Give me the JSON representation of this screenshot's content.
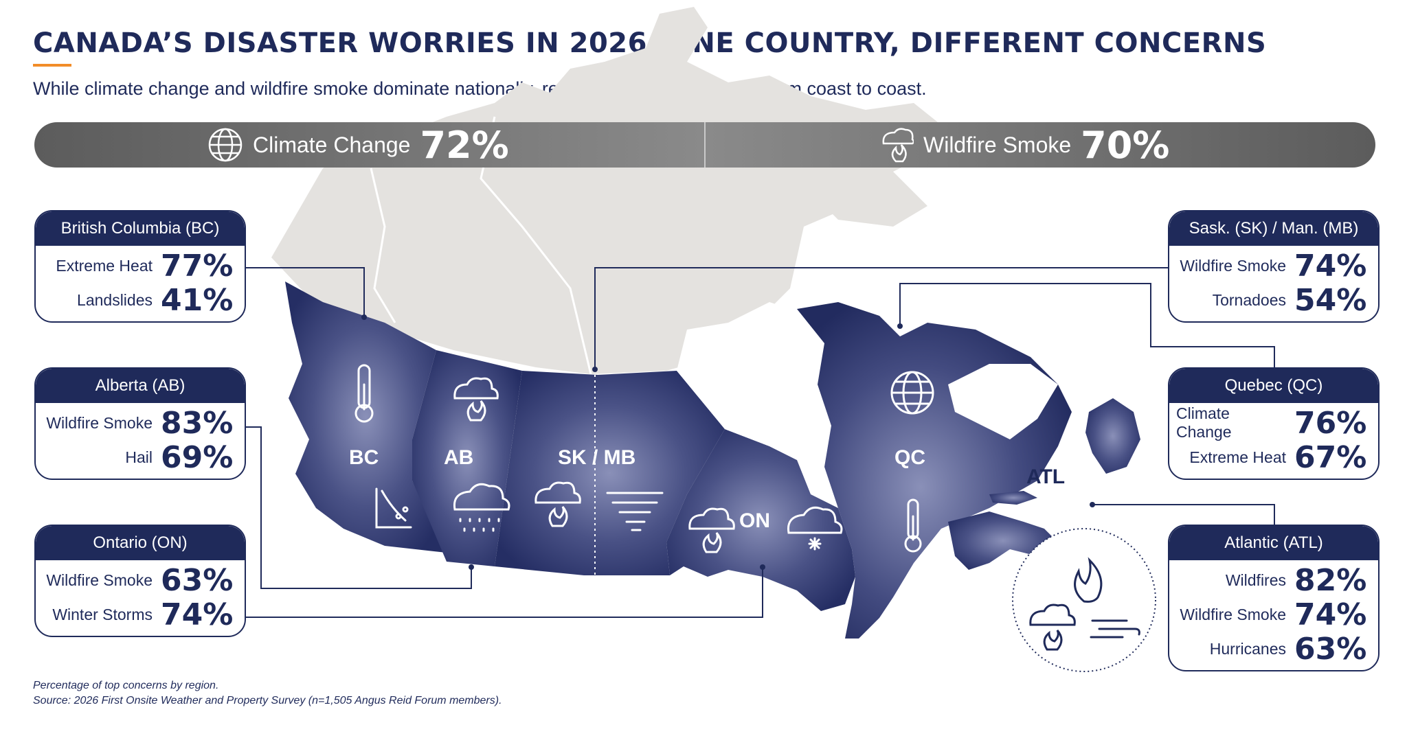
{
  "header": {
    "title": "CANADA’S DISASTER WORRIES IN 2026: ONE COUNTRY, DIFFERENT CONCERNS",
    "subtitle": "While climate change and wildfire smoke dominate nationally, regional fears vary sharply from coast to coast."
  },
  "national": [
    {
      "label": "Climate Change",
      "value": "72%",
      "icon": "globe-icon"
    },
    {
      "label": "Wildfire Smoke",
      "value": "70%",
      "icon": "smoke-fire-icon"
    }
  ],
  "regions": {
    "bc": {
      "title": "British Columbia (BC)",
      "rows": [
        {
          "label": "Extreme Heat",
          "value": "77%"
        },
        {
          "label": "Landslides",
          "value": "41%"
        }
      ]
    },
    "ab": {
      "title": "Alberta (AB)",
      "rows": [
        {
          "label": "Wildfire Smoke",
          "value": "83%"
        },
        {
          "label": "Hail",
          "value": "69%"
        }
      ]
    },
    "on": {
      "title": "Ontario (ON)",
      "rows": [
        {
          "label": "Wildfire Smoke",
          "value": "63%"
        },
        {
          "label": "Winter Storms",
          "value": "74%"
        }
      ]
    },
    "skmb": {
      "title": "Sask. (SK) / Man. (MB)",
      "rows": [
        {
          "label": "Wildfire Smoke",
          "value": "74%"
        },
        {
          "label": "Tornadoes",
          "value": "54%"
        }
      ]
    },
    "qc": {
      "title": "Quebec (QC)",
      "rows": [
        {
          "label": "Climate Change",
          "value": "76%"
        },
        {
          "label": "Extreme Heat",
          "value": "67%"
        }
      ]
    },
    "atl": {
      "title": "Atlantic (ATL)",
      "rows": [
        {
          "label": "Wildfires",
          "value": "82%"
        },
        {
          "label": "Wildfire Smoke",
          "value": "74%"
        },
        {
          "label": "Hurricanes",
          "value": "63%"
        }
      ]
    }
  },
  "map_labels": {
    "bc": "BC",
    "ab": "AB",
    "skmb": "SK / MB",
    "on": "ON",
    "qc": "QC",
    "atl": "ATL"
  },
  "footnotes": {
    "note": "Percentage of top concerns by region.",
    "source": "Source: 2026 First Onsite Weather and Property Survey (n=1,505 Angus Reid Forum members)."
  },
  "colors": {
    "navy": "#1f2a5a",
    "accent": "#f28c28",
    "banner": "#7a7a7a",
    "north": "#e4e2df"
  }
}
